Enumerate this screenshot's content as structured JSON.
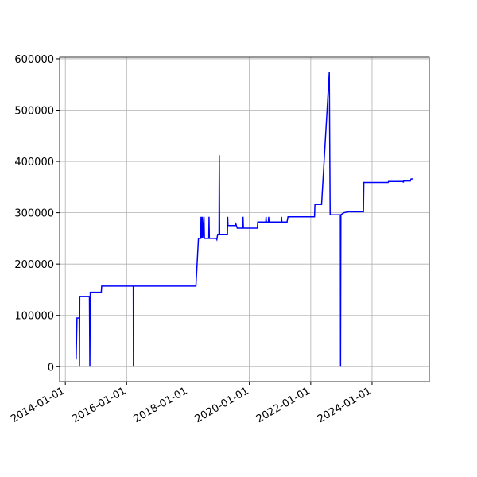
{
  "chart_data": {
    "type": "line",
    "x": [
      "2014-05-10",
      "2014-05-20",
      "2014-06-15",
      "2014-06-18",
      "2014-06-22",
      "2014-10-15",
      "2014-10-20",
      "2014-10-25",
      "2015-03-05",
      "2015-03-10",
      "2016-03-20",
      "2016-03-22",
      "2016-03-26",
      "2018-04-05",
      "2018-05-05",
      "2018-06-01",
      "2018-06-05",
      "2018-06-10",
      "2018-06-20",
      "2018-06-25",
      "2018-07-10",
      "2018-07-15",
      "2018-09-05",
      "2018-09-08",
      "2018-09-12",
      "2018-12-05",
      "2018-12-10",
      "2018-12-20",
      "2019-01-05",
      "2019-01-08",
      "2019-01-12",
      "2019-04-15",
      "2019-04-18",
      "2019-04-22",
      "2019-07-20",
      "2019-07-25",
      "2019-08-10",
      "2019-10-15",
      "2019-10-18",
      "2019-10-22",
      "2020-04-05",
      "2020-04-10",
      "2020-07-15",
      "2020-07-18",
      "2020-07-22",
      "2020-08-15",
      "2020-08-18",
      "2020-08-22",
      "2021-01-15",
      "2021-01-18",
      "2021-01-22",
      "2021-03-25",
      "2021-04-05",
      "2022-02-15",
      "2022-02-20",
      "2022-05-10",
      "2022-08-10",
      "2022-08-20",
      "2022-12-20",
      "2022-12-22",
      "2022-12-26",
      "2023-01-30",
      "2023-04-01",
      "2023-09-20",
      "2023-09-25",
      "2024-07-10",
      "2024-07-15",
      "2025-01-05",
      "2025-01-08",
      "2025-01-12",
      "2025-04-01",
      "2025-04-10",
      "2025-05-01"
    ],
    "series": [
      {
        "color": "#0000ff",
        "values": [
          14000,
          95000,
          95000,
          0,
          137000,
          137000,
          0,
          145000,
          145000,
          157000,
          157000,
          0,
          157000,
          157000,
          250000,
          250000,
          292000,
          250000,
          292000,
          250000,
          292000,
          250000,
          250000,
          292000,
          250000,
          250000,
          248000,
          258000,
          258000,
          412000,
          258000,
          258000,
          292000,
          275000,
          275000,
          278000,
          270000,
          270000,
          292000,
          270000,
          270000,
          282000,
          282000,
          292000,
          282000,
          282000,
          292000,
          282000,
          282000,
          292000,
          282000,
          282000,
          292000,
          292000,
          316000,
          316000,
          574000,
          296000,
          296000,
          0,
          296000,
          300000,
          302000,
          302000,
          359000,
          359000,
          361000,
          361000,
          359000,
          362000,
          362000,
          366000,
          366000
        ]
      }
    ],
    "xlim": [
      "2013-10-25",
      "2025-11-13"
    ],
    "xticks": [
      "2014-01-01",
      "2016-01-01",
      "2018-01-01",
      "2020-01-01",
      "2022-01-01",
      "2024-01-01"
    ],
    "ylim": [
      -29000,
      603000
    ],
    "yticks": [
      0,
      100000,
      200000,
      300000,
      400000,
      500000,
      600000
    ],
    "grid": true
  }
}
